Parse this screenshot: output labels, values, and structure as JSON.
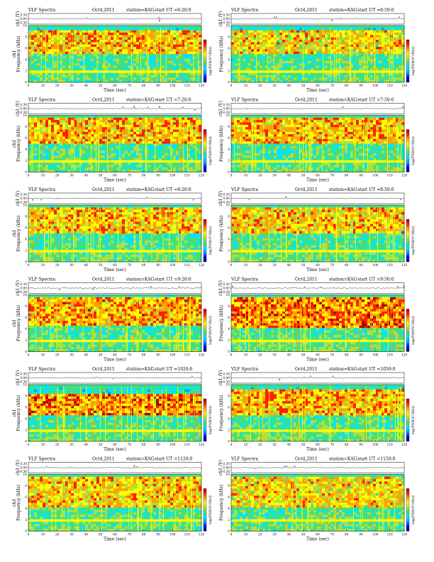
{
  "common": {
    "title": "VLF Spectra",
    "date": "Oct4,2011",
    "station": "station=KAG",
    "xlabel": "Time (sec)",
    "ylabel_left": "Frequency (kHz)",
    "ylabel_right": "Frequency (kHz)",
    "ch_label": "ch1 (V)",
    "ch_title": "ch1",
    "ch_ticks": [
      "0.30",
      "0.00",
      "-0.30"
    ],
    "x_ticks": [
      "0",
      "10",
      "20",
      "30",
      "40",
      "50",
      "60",
      "70",
      "80",
      "90",
      "100",
      "110",
      "120"
    ],
    "y_ticks": [
      "0",
      "2",
      "4",
      "6",
      "8",
      "10"
    ],
    "colorbar_label": "log(PSD(V²/Hz))"
  },
  "chart_data": [
    {
      "type": "heatmap",
      "start": "start UT =6:20:0",
      "xlim": [
        0,
        120
      ],
      "ylim": [
        0,
        10
      ],
      "xlabel": "Time (sec)",
      "ylabel": "Frequency (kHz)",
      "band_khz": [
        5,
        9
      ],
      "intensity": 0.55,
      "sferic_density": 0.8
    },
    {
      "type": "heatmap",
      "start": "start UT =6:50:0",
      "xlim": [
        0,
        120
      ],
      "ylim": [
        0,
        10
      ],
      "xlabel": "Time (sec)",
      "ylabel": "Frequency (kHz)",
      "band_khz": [
        5,
        9
      ],
      "intensity": 0.45,
      "sferic_density": 0.7
    },
    {
      "type": "heatmap",
      "start": "start UT =7:20:0",
      "xlim": [
        0,
        120
      ],
      "ylim": [
        0,
        10
      ],
      "xlabel": "Time (sec)",
      "ylabel": "Frequency (kHz)",
      "band_khz": [
        5,
        9.5
      ],
      "intensity": 0.6,
      "sferic_density": 0.8
    },
    {
      "type": "heatmap",
      "start": "start UT =7:50:0",
      "xlim": [
        0,
        120
      ],
      "ylim": [
        0,
        10
      ],
      "xlabel": "Time (sec)",
      "ylabel": "Frequency (kHz)",
      "band_khz": [
        5,
        9.5
      ],
      "intensity": 0.55,
      "sferic_density": 0.75
    },
    {
      "type": "heatmap",
      "start": "start UT =8:20:0",
      "xlim": [
        0,
        120
      ],
      "ylim": [
        0,
        10
      ],
      "xlabel": "Time (sec)",
      "ylabel": "Frequency (kHz)",
      "band_khz": [
        5,
        9.5
      ],
      "intensity": 0.55,
      "sferic_density": 0.8
    },
    {
      "type": "heatmap",
      "start": "start UT =8:50:0",
      "xlim": [
        0,
        120
      ],
      "ylim": [
        0,
        10
      ],
      "xlabel": "Time (sec)",
      "ylabel": "Frequency (kHz)",
      "band_khz": [
        5,
        9.5
      ],
      "intensity": 0.55,
      "sferic_density": 0.8
    },
    {
      "type": "heatmap",
      "start": "start UT =9:20:0",
      "xlim": [
        0,
        120
      ],
      "ylim": [
        0,
        10
      ],
      "xlabel": "Time (sec)",
      "ylabel": "Frequency (kHz)",
      "band_khz": [
        4.5,
        9.5
      ],
      "intensity": 0.65,
      "sferic_density": 0.85
    },
    {
      "type": "heatmap",
      "start": "start UT =9:50:0",
      "xlim": [
        0,
        120
      ],
      "ylim": [
        0,
        10
      ],
      "xlabel": "Time (sec)",
      "ylabel": "Frequency (kHz)",
      "band_khz": [
        4,
        9.5
      ],
      "intensity": 0.8,
      "sferic_density": 0.9
    },
    {
      "type": "heatmap",
      "start": "start UT =1020:0",
      "xlim": [
        0,
        120
      ],
      "ylim": [
        0,
        10
      ],
      "xlabel": "Time (sec)",
      "ylabel": "Frequency (kHz)",
      "band_khz": [
        4.5,
        8.5
      ],
      "intensity": 0.75,
      "sferic_density": 0.85
    },
    {
      "type": "heatmap",
      "start": "start UT =1050:0",
      "xlim": [
        0,
        120
      ],
      "ylim": [
        0,
        10
      ],
      "xlabel": "Time (sec)",
      "ylabel": "Frequency (kHz)",
      "band_khz": [
        4.5,
        9
      ],
      "intensity": 0.6,
      "sferic_density": 0.8
    },
    {
      "type": "heatmap",
      "start": "start UT =1120:0",
      "xlim": [
        0,
        120
      ],
      "ylim": [
        0,
        10
      ],
      "xlabel": "Time (sec)",
      "ylabel": "Frequency (kHz)",
      "band_khz": [
        4,
        9.5
      ],
      "intensity": 0.5,
      "sferic_density": 0.75
    },
    {
      "type": "heatmap",
      "start": "start UT =1150:0",
      "xlim": [
        0,
        120
      ],
      "ylim": [
        0,
        10
      ],
      "xlabel": "Time (sec)",
      "ylabel": "Frequency (kHz)",
      "band_khz": [
        4,
        9.5
      ],
      "intensity": 0.45,
      "sferic_density": 0.7
    }
  ],
  "colorscale": [
    "#00007a",
    "#0000ff",
    "#00a0ff",
    "#00e5ff",
    "#40e080",
    "#b0e040",
    "#ffff00",
    "#ffa000",
    "#ff2000",
    "#b00000"
  ]
}
